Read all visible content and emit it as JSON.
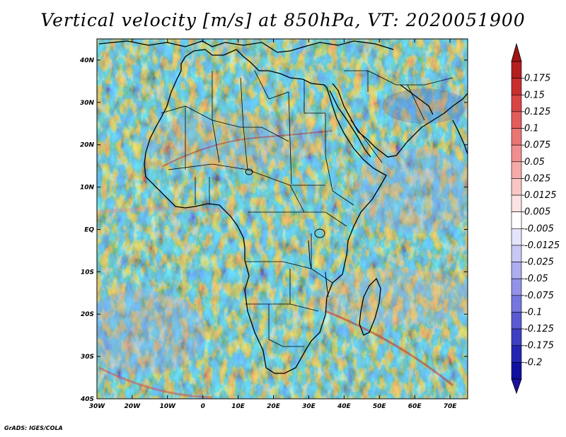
{
  "title": "Vertical velocity [m/s] at 850hPa, VT: 2020051900",
  "footer": "GrADS: IGES/COLA",
  "map": {
    "lon_range": [
      -30,
      75
    ],
    "lat_range": [
      -40,
      45
    ],
    "x_ticks": [
      {
        "value": -30,
        "label": "30W"
      },
      {
        "value": -20,
        "label": "20W"
      },
      {
        "value": -10,
        "label": "10W"
      },
      {
        "value": 0,
        "label": "0"
      },
      {
        "value": 10,
        "label": "10E"
      },
      {
        "value": 20,
        "label": "20E"
      },
      {
        "value": 30,
        "label": "30E"
      },
      {
        "value": 40,
        "label": "40E"
      },
      {
        "value": 50,
        "label": "50E"
      },
      {
        "value": 60,
        "label": "60E"
      },
      {
        "value": 70,
        "label": "70E"
      }
    ],
    "y_ticks": [
      {
        "value": 40,
        "label": "40N"
      },
      {
        "value": 30,
        "label": "30N"
      },
      {
        "value": 20,
        "label": "20N"
      },
      {
        "value": 10,
        "label": "10N"
      },
      {
        "value": 0,
        "label": "EQ"
      },
      {
        "value": -10,
        "label": "10S"
      },
      {
        "value": -20,
        "label": "20S"
      },
      {
        "value": -30,
        "label": "30S"
      },
      {
        "value": -40,
        "label": "40S"
      }
    ]
  },
  "colorbar": {
    "labels": [
      "0.175",
      "0.15",
      "0.125",
      "0.1",
      "0.075",
      "0.05",
      "0.025",
      "0.0125",
      "0.005",
      "-0.005",
      "-0.0125",
      "-0.025",
      "-0.05",
      "-0.075",
      "-0.1",
      "-0.125",
      "-0.175",
      "-0.2"
    ],
    "colors": [
      "#b51e1e",
      "#c92e2e",
      "#d94444",
      "#e45c5c",
      "#ea7575",
      "#f08f8f",
      "#f5aaaa",
      "#f9c6c6",
      "#fce2e2",
      "#ffffff",
      "#e4e4fb",
      "#c8c8f5",
      "#adadef",
      "#9292e8",
      "#7676df",
      "#5a5ad2",
      "#3e3ec4",
      "#2424b3",
      "#1010a0"
    ],
    "top_color": "#a01414",
    "bottom_color": "#1a10a0"
  }
}
